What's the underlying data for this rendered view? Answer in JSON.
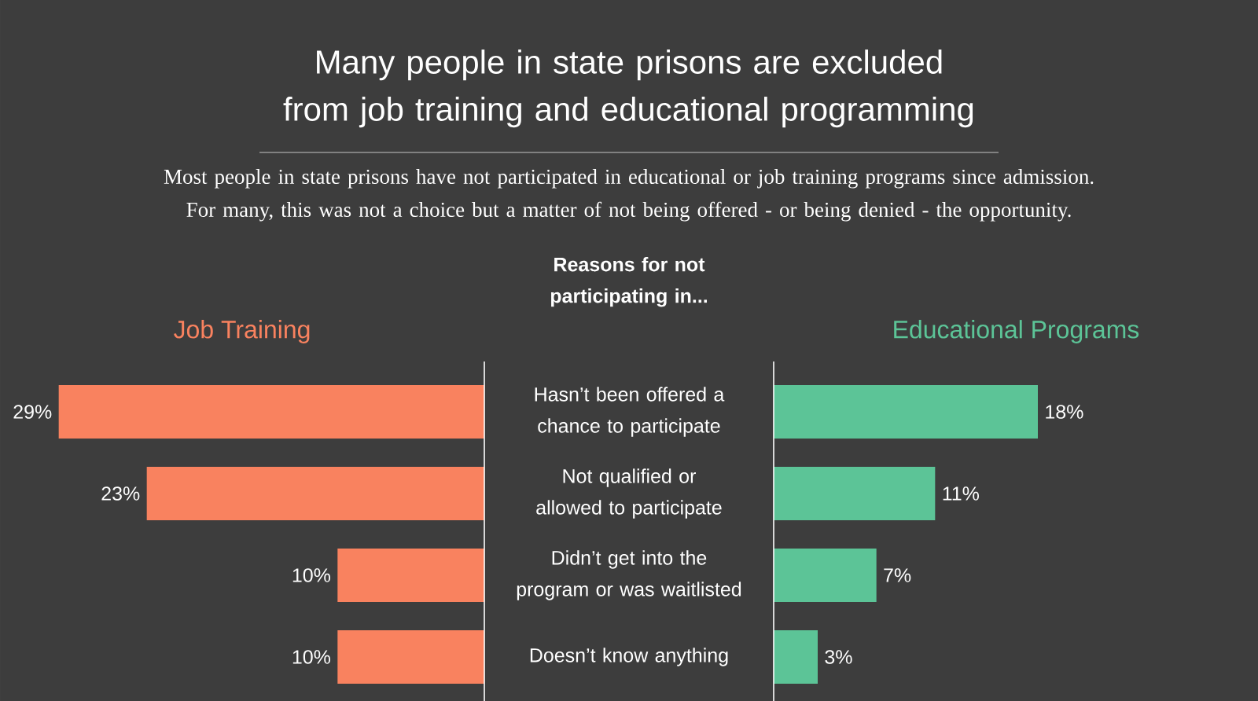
{
  "chart_data": [
    {
      "type": "other",
      "title": "Many people in state prisons are excluded from job training and educational programming",
      "subtitle": "Most people in state prisons have not participated in educational or job training programs since admission. For many, this was not a choice but a matter of not being offered - or being denied - the opportunity.",
      "annotations": [
        "Reasons for not participating in..."
      ]
    },
    {
      "type": "bar",
      "orientation": "horizontal",
      "title": "Job Training",
      "categories": [
        "Hasn’t been offered a chance to participate",
        "Not qualified or allowed to participate",
        "Didn’t get into the program or was waitlisted",
        "Doesn’t know anything"
      ],
      "values": [
        29,
        23,
        10,
        10
      ],
      "value_labels": [
        "29%",
        "23%",
        "10%",
        "10%"
      ],
      "color": "#f9825f",
      "xlim": [
        33,
        0
      ],
      "tick_labels": "y"
    },
    {
      "type": "bar",
      "orientation": "horizontal",
      "title": "Educational Programs",
      "categories": [
        null,
        null,
        null,
        null
      ],
      "values": [
        18,
        11,
        7,
        3
      ],
      "value_labels": [
        "18%",
        "11%",
        "7%",
        "3%"
      ],
      "color": "#5cc497",
      "xlim": [
        0,
        33
      ]
    }
  ]
}
